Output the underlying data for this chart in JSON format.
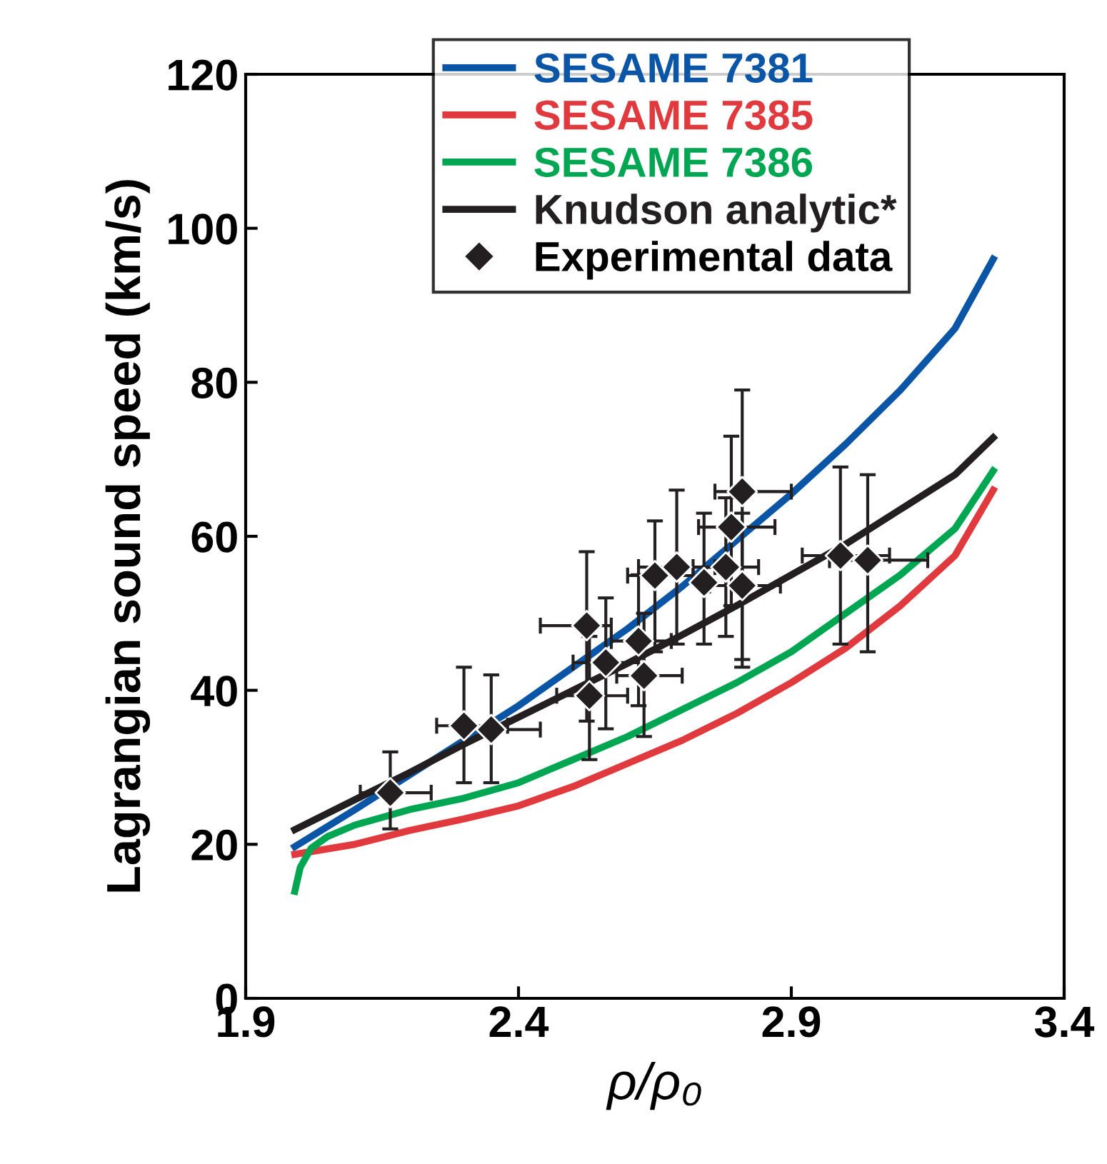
{
  "chart_data": {
    "type": "line",
    "xlabel": "ρ/ρ₀",
    "ylabel": "Lagrangian sound speed (km/s)",
    "xlim": [
      1.9,
      3.4
    ],
    "xticks": [
      1.9,
      2.4,
      2.9,
      3.4
    ],
    "ylim": [
      0,
      120
    ],
    "yticks": [
      0,
      20,
      40,
      60,
      80,
      100,
      120
    ],
    "grid": false,
    "legend": "top",
    "series": [
      {
        "name": "SESAME 7381",
        "color": "#0a55a6",
        "x": [
          1.99,
          2.1,
          2.2,
          2.3,
          2.4,
          2.5,
          2.6,
          2.7,
          2.8,
          2.9,
          3.0,
          3.1,
          3.2,
          3.27
        ],
        "values": [
          19.7,
          24.5,
          29,
          33.5,
          38,
          43,
          48,
          53.5,
          59.5,
          65.5,
          72,
          79,
          87,
          96
        ]
      },
      {
        "name": "SESAME 7385",
        "color": "#e03a3e",
        "x": [
          1.99,
          2.1,
          2.2,
          2.3,
          2.4,
          2.5,
          2.6,
          2.7,
          2.8,
          2.9,
          3.0,
          3.1,
          3.2,
          3.27
        ],
        "values": [
          18.7,
          20,
          21.8,
          23.3,
          25,
          27.5,
          30.5,
          33.5,
          37,
          41,
          45.5,
          51,
          57.5,
          66
        ]
      },
      {
        "name": "SESAME 7386",
        "color": "#00a651",
        "x": [
          1.99,
          2.0,
          2.02,
          2.05,
          2.1,
          2.2,
          2.3,
          2.4,
          2.5,
          2.6,
          2.7,
          2.8,
          2.9,
          3.0,
          3.1,
          3.2,
          3.27
        ],
        "values": [
          13.9,
          17,
          19.5,
          21,
          22.5,
          24.5,
          26,
          28,
          31,
          34,
          37.5,
          41,
          45,
          50,
          55,
          61,
          68.5
        ]
      },
      {
        "name": "Knudson analytic*",
        "color": "#231f20",
        "x": [
          1.99,
          2.1,
          2.2,
          2.3,
          2.4,
          2.5,
          2.6,
          2.7,
          2.8,
          2.9,
          3.0,
          3.1,
          3.2,
          3.27
        ],
        "values": [
          21.9,
          25.8,
          29.3,
          33,
          36.5,
          40,
          43.5,
          47.2,
          51,
          55,
          59,
          63.5,
          68,
          72.8
        ]
      },
      {
        "name": "Experimental data",
        "type": "scatter",
        "marker": "diamond",
        "color": "#231f20",
        "x": [
          2.165,
          2.3,
          2.35,
          2.525,
          2.53,
          2.56,
          2.62,
          2.63,
          2.65,
          2.69,
          2.74,
          2.78,
          2.79,
          2.81,
          2.81,
          2.99,
          3.04
        ],
        "values": [
          26.7,
          35.4,
          34.9,
          48.4,
          39.3,
          43.6,
          46.4,
          41.9,
          54.9,
          56,
          54,
          56,
          61.2,
          65.8,
          53.6,
          57.5,
          56.9
        ],
        "errors": [
          [
            22,
            32
          ],
          [
            28,
            43
          ],
          [
            28,
            42
          ],
          [
            36,
            58
          ],
          [
            31,
            47
          ],
          [
            35,
            52
          ],
          [
            38,
            55
          ],
          [
            34,
            50
          ],
          [
            45,
            62
          ],
          [
            46,
            66
          ],
          [
            46,
            63
          ],
          [
            47,
            65
          ],
          [
            51,
            73
          ],
          [
            43,
            79
          ],
          [
            44,
            63
          ],
          [
            46,
            69
          ],
          [
            45,
            68
          ]
        ],
        "xerrors": [
          [
            2.11,
            2.24
          ],
          [
            2.25,
            2.38
          ],
          [
            2.35,
            2.44
          ],
          [
            2.44,
            2.57
          ],
          [
            2.47,
            2.6
          ],
          [
            2.5,
            2.62
          ],
          [
            2.57,
            2.68
          ],
          [
            2.58,
            2.7
          ],
          [
            2.6,
            2.72
          ],
          [
            2.62,
            2.76
          ],
          null,
          [
            2.72,
            2.84
          ],
          [
            2.73,
            2.87
          ],
          [
            2.76,
            2.9
          ],
          [
            2.75,
            2.88
          ],
          [
            2.92,
            3.08
          ],
          [
            2.97,
            3.15
          ]
        ]
      }
    ]
  }
}
